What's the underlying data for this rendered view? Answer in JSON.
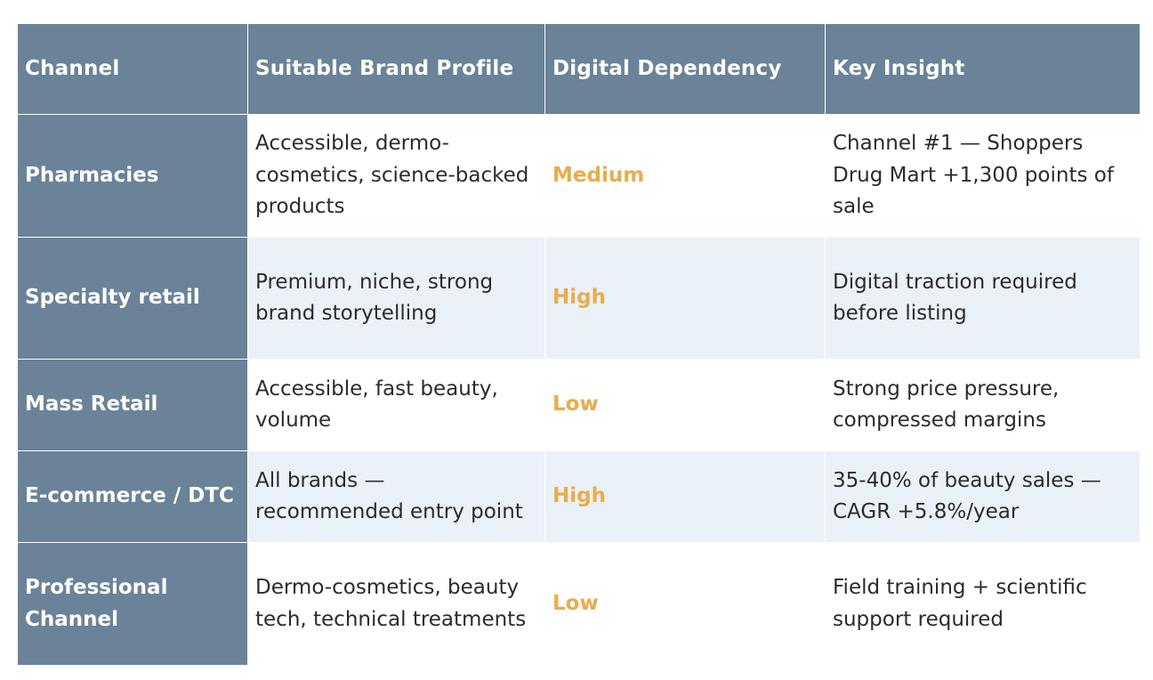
{
  "table": {
    "headers": [
      "Channel",
      "Suitable Brand Profile",
      "Digital Dependency",
      "Key Insight"
    ],
    "rows": [
      {
        "channel": "Pharmacies",
        "profile": "Accessible, dermo-cosmetics, science-backed products",
        "dependency": "Medium",
        "insight": "Channel #1 — Shoppers Drug Mart +1,300 points of sale"
      },
      {
        "channel": "Specialty retail",
        "profile": "Premium, niche, strong brand storytelling",
        "dependency": "High",
        "insight": "Digital traction required before listing"
      },
      {
        "channel": "Mass Retail",
        "profile": "Accessible, fast beauty, volume",
        "dependency": "Low",
        "insight": "Strong price pressure, compressed margins"
      },
      {
        "channel": "E-commerce / DTC",
        "profile": "All brands — recommended entry point",
        "dependency": "High",
        "insight": "35-40% of beauty sales — CAGR +5.8%/year"
      },
      {
        "channel": "Professional Channel",
        "profile": "Dermo-cosmetics, beauty tech, technical treatments",
        "dependency": "Low",
        "insight": "Field training + scientific support required"
      }
    ]
  },
  "colors": {
    "header_bg": "#6a8398",
    "header_text": "#ffffff",
    "dependency_text": "#e8ad4c",
    "stripe_bg": "#ebf1f9",
    "body_text": "#2b2b2b"
  }
}
